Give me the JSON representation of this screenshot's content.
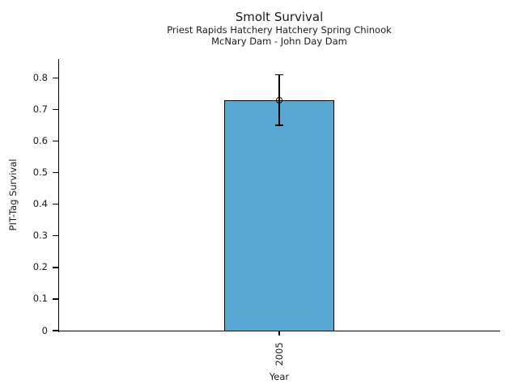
{
  "figure": {
    "background": "#ffffff",
    "text_color": "#1a1a1a"
  },
  "chart_data": {
    "type": "bar",
    "title": "Smolt Survival",
    "subtitle_line1": "Priest Rapids Hatchery Hatchery Spring Chinook",
    "subtitle_line2": "McNary Dam - John Day Dam",
    "xlabel": "Year",
    "ylabel": "PIT-Tag Survival",
    "categories": [
      "2005"
    ],
    "values": [
      0.73
    ],
    "error_low": [
      0.65
    ],
    "error_high": [
      0.81
    ],
    "yticks": [
      0,
      0.1,
      0.2,
      0.3,
      0.4,
      0.5,
      0.6,
      0.7,
      0.8
    ],
    "ytick_labels": [
      "0",
      "0.1",
      "0.2",
      "0.3",
      "0.4",
      "0.5",
      "0.6",
      "0.7",
      "0.8"
    ],
    "ylim": [
      0,
      0.86
    ],
    "grid": false,
    "legend": "none",
    "marker": "open-circle",
    "bar_color": "#58A8D4",
    "bar_edge_color": "#000000",
    "error_color": "#000000",
    "axis_color": "#000000"
  }
}
